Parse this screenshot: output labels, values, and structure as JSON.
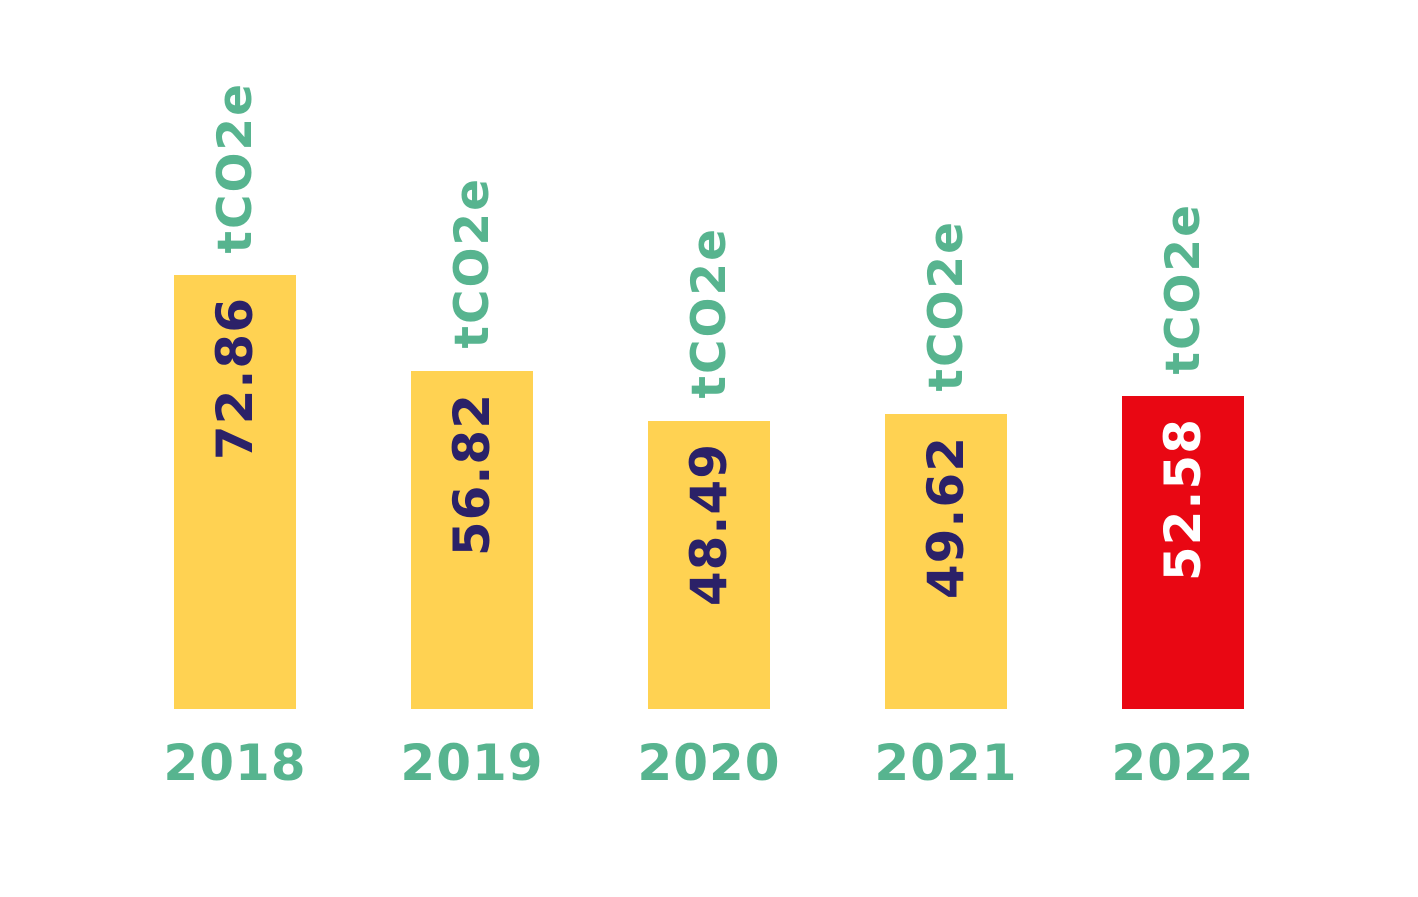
{
  "colors": {
    "background": "#FFFFFF",
    "teal": "#57B48F",
    "navy": "#2B2168",
    "yellow": "#FFD252",
    "red": "#E90713",
    "white": "#FFFFFF"
  },
  "chart_data": {
    "type": "bar",
    "categories": [
      "2018",
      "2019",
      "2020",
      "2021",
      "2022"
    ],
    "values": [
      72.86,
      56.82,
      48.49,
      49.62,
      52.58
    ],
    "value_labels": [
      "72.86",
      "56.82",
      "48.49",
      "49.62",
      "52.58"
    ],
    "unit_label": "tCO2e",
    "title": "",
    "xlabel": "",
    "ylabel": "",
    "ylim": [
      0,
      80
    ],
    "grid": false,
    "axes_visible": false,
    "legend": "none",
    "value_label_rotation": -90,
    "unit_label_rotation": -90,
    "bar_colors": [
      "#FFD252",
      "#FFD252",
      "#FFD252",
      "#FFD252",
      "#E90713"
    ],
    "value_label_colors": [
      "#2B2168",
      "#2B2168",
      "#2B2168",
      "#2B2168",
      "#FFFFFF"
    ],
    "unit_label_color": "#57B48F",
    "category_label_color": "#57B48F"
  }
}
